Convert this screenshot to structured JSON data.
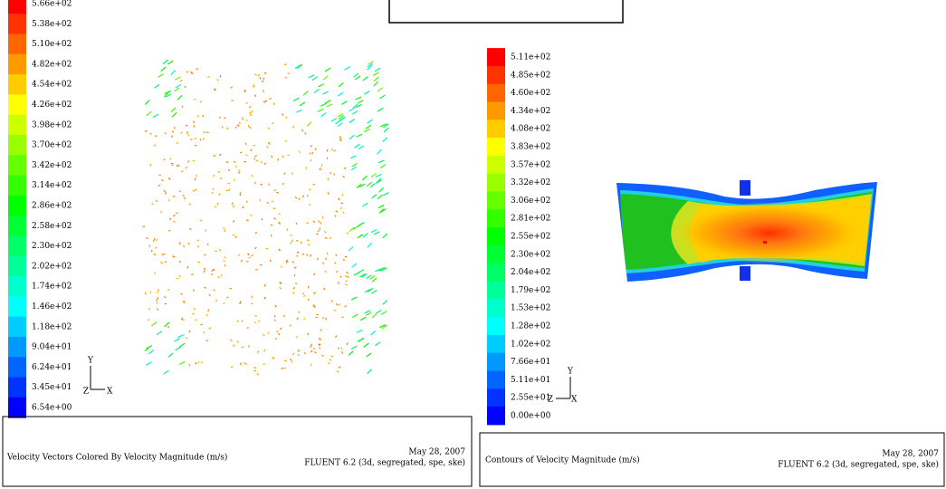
{
  "left_panel": {
    "legend_labels": [
      "5.66e+02",
      "5.38e+02",
      "5.10e+02",
      "4.82e+02",
      "4.54e+02",
      "4.26e+02",
      "3.98e+02",
      "3.70e+02",
      "3.42e+02",
      "3.14e+02",
      "2.86e+02",
      "2.58e+02",
      "2.30e+02",
      "2.02e+02",
      "1.74e+02",
      "1.46e+02",
      "1.18e+02",
      "9.04e+01",
      "6.24e+01",
      "3.45e+01",
      "6.54e+00"
    ],
    "axis_labels": {
      "y": "Y",
      "z": "Z",
      "x": "X"
    },
    "footer": {
      "title": "Velocity Vectors Colored By Velocity Magnitude (m/s)",
      "date": "May 28, 2007",
      "solver": "FLUENT 6.2 (3d, segregated, spe, ske)"
    }
  },
  "right_panel": {
    "legend_labels": [
      "5.11e+02",
      "4.85e+02",
      "4.60e+02",
      "4.34e+02",
      "4.08e+02",
      "3.83e+02",
      "3.57e+02",
      "3.32e+02",
      "3.06e+02",
      "2.81e+02",
      "2.55e+02",
      "2.30e+02",
      "2.04e+02",
      "1.79e+02",
      "1.53e+02",
      "1.28e+02",
      "1.02e+02",
      "7.66e+01",
      "5.11e+01",
      "2.55e+01",
      "0.00e+00"
    ],
    "axis_labels": {
      "y": "Y",
      "z": "Z",
      "x": "X"
    },
    "footer": {
      "title": "Contours of Velocity Magnitude (m/s)",
      "date": "May 28, 2007",
      "solver": "FLUENT 6.2 (3d, segregated, spe, ske)"
    }
  }
}
